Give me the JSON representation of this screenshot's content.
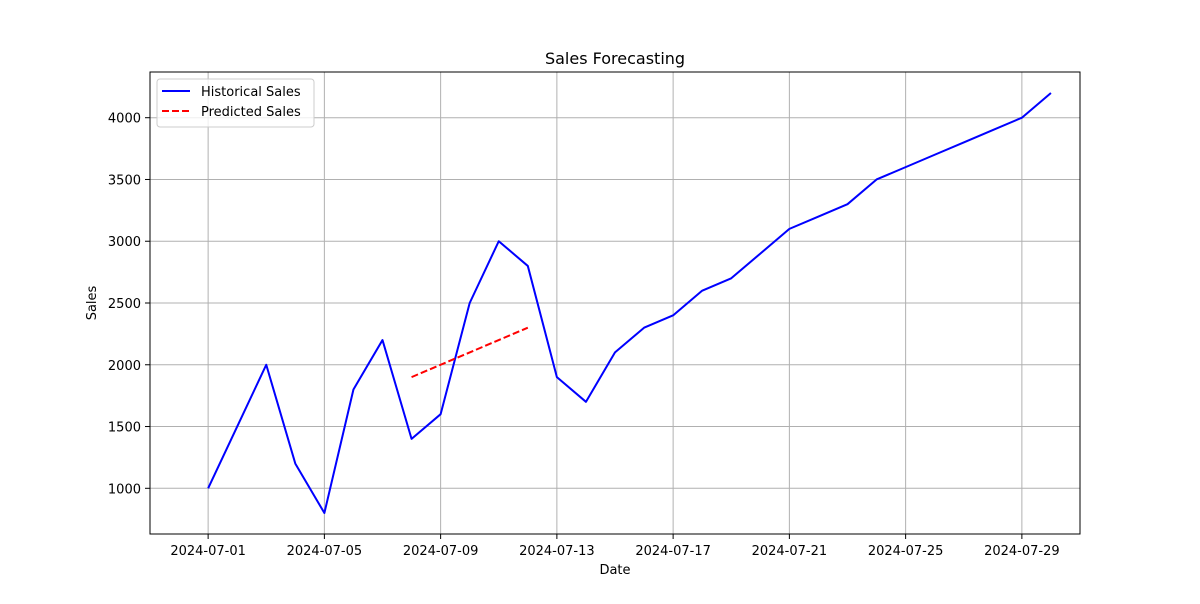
{
  "chart_data": {
    "type": "line",
    "title": "Sales Forecasting",
    "xlabel": "Date",
    "ylabel": "Sales",
    "x_axis": {
      "kind": "date",
      "range": [
        "2024-06-29",
        "2024-07-31"
      ],
      "ticks": [
        {
          "date": "2024-07-01",
          "label": "2024-07-01"
        },
        {
          "date": "2024-07-05",
          "label": "2024-07-05"
        },
        {
          "date": "2024-07-09",
          "label": "2024-07-09"
        },
        {
          "date": "2024-07-13",
          "label": "2024-07-13"
        },
        {
          "date": "2024-07-17",
          "label": "2024-07-17"
        },
        {
          "date": "2024-07-21",
          "label": "2024-07-21"
        },
        {
          "date": "2024-07-25",
          "label": "2024-07-25"
        },
        {
          "date": "2024-07-29",
          "label": "2024-07-29"
        }
      ]
    },
    "y_axis": {
      "range": [
        630,
        4370
      ],
      "ticks": [
        {
          "value": 1000,
          "label": "1000"
        },
        {
          "value": 1500,
          "label": "1500"
        },
        {
          "value": 2000,
          "label": "2000"
        },
        {
          "value": 2500,
          "label": "2500"
        },
        {
          "value": 3000,
          "label": "3000"
        },
        {
          "value": 3500,
          "label": "3500"
        },
        {
          "value": 4000,
          "label": "4000"
        }
      ]
    },
    "grid": true,
    "legend_position": "top-left",
    "series": [
      {
        "name": "Historical Sales",
        "color": "#0000ff",
        "line_style": "solid",
        "points": [
          {
            "x": "2024-07-01",
            "y": 1000
          },
          {
            "x": "2024-07-02",
            "y": 1500
          },
          {
            "x": "2024-07-03",
            "y": 2000
          },
          {
            "x": "2024-07-04",
            "y": 1200
          },
          {
            "x": "2024-07-05",
            "y": 800
          },
          {
            "x": "2024-07-06",
            "y": 1800
          },
          {
            "x": "2024-07-07",
            "y": 2200
          },
          {
            "x": "2024-07-08",
            "y": 1400
          },
          {
            "x": "2024-07-09",
            "y": 1600
          },
          {
            "x": "2024-07-10",
            "y": 2500
          },
          {
            "x": "2024-07-11",
            "y": 3000
          },
          {
            "x": "2024-07-12",
            "y": 2800
          },
          {
            "x": "2024-07-13",
            "y": 1900
          },
          {
            "x": "2024-07-14",
            "y": 1700
          },
          {
            "x": "2024-07-15",
            "y": 2100
          },
          {
            "x": "2024-07-16",
            "y": 2300
          },
          {
            "x": "2024-07-17",
            "y": 2400
          },
          {
            "x": "2024-07-18",
            "y": 2600
          },
          {
            "x": "2024-07-19",
            "y": 2700
          },
          {
            "x": "2024-07-20",
            "y": 2900
          },
          {
            "x": "2024-07-21",
            "y": 3100
          },
          {
            "x": "2024-07-22",
            "y": 3200
          },
          {
            "x": "2024-07-23",
            "y": 3300
          },
          {
            "x": "2024-07-24",
            "y": 3500
          },
          {
            "x": "2024-07-25",
            "y": 3600
          },
          {
            "x": "2024-07-26",
            "y": 3700
          },
          {
            "x": "2024-07-27",
            "y": 3800
          },
          {
            "x": "2024-07-28",
            "y": 3900
          },
          {
            "x": "2024-07-29",
            "y": 4000
          },
          {
            "x": "2024-07-30",
            "y": 4200
          }
        ]
      },
      {
        "name": "Predicted Sales",
        "color": "#ff0000",
        "line_style": "dashed",
        "points": [
          {
            "x": "2024-07-08",
            "y": 1900
          },
          {
            "x": "2024-07-09",
            "y": 2000
          },
          {
            "x": "2024-07-10",
            "y": 2100
          },
          {
            "x": "2024-07-11",
            "y": 2200
          },
          {
            "x": "2024-07-12",
            "y": 2300
          }
        ]
      }
    ]
  }
}
